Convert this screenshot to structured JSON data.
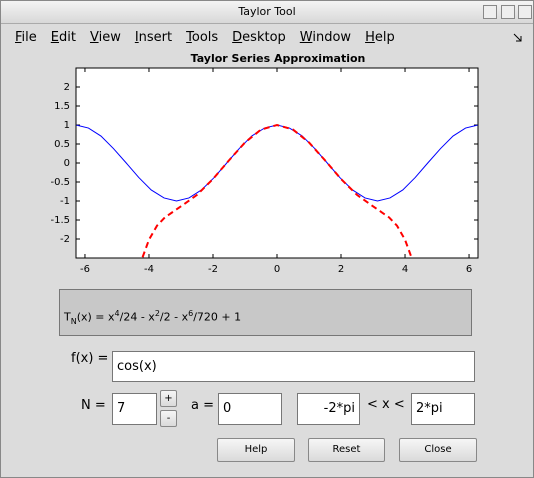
{
  "window": {
    "title": "Taylor Tool",
    "menu": [
      "File",
      "Edit",
      "View",
      "Insert",
      "Tools",
      "Desktop",
      "Window",
      "Help"
    ]
  },
  "chart_data": {
    "type": "line",
    "title": "Taylor Series Approximation",
    "xlim": [
      -6.28,
      6.28
    ],
    "ylim": [
      -2.5,
      2.5
    ],
    "xticks": [
      -6,
      -4,
      -2,
      0,
      2,
      4,
      6
    ],
    "yticks": [
      -2,
      -1.5,
      -1,
      -0.5,
      0,
      0.5,
      1,
      1.5,
      2
    ],
    "series": [
      {
        "color": "#0000ff",
        "dash": false,
        "x": [
          -6.28,
          -5.89,
          -5.5,
          -5.11,
          -4.71,
          -4.32,
          -3.93,
          -3.53,
          -3.14,
          -2.75,
          -2.36,
          -1.96,
          -1.57,
          -1.18,
          -0.79,
          -0.39,
          0,
          0.39,
          0.79,
          1.18,
          1.57,
          1.96,
          2.36,
          2.75,
          3.14,
          3.53,
          3.93,
          4.32,
          4.71,
          5.11,
          5.5,
          5.89,
          6.28
        ],
        "values": [
          1,
          0.92,
          0.71,
          0.38,
          0,
          -0.38,
          -0.71,
          -0.92,
          -1,
          -0.92,
          -0.71,
          -0.38,
          0,
          0.38,
          0.71,
          0.92,
          1,
          0.92,
          0.71,
          0.38,
          0,
          -0.38,
          -0.71,
          -0.92,
          -1,
          -0.92,
          -0.71,
          -0.38,
          0,
          0.38,
          0.71,
          0.92,
          1
        ]
      },
      {
        "color": "#ff0000",
        "dash": true,
        "x": [
          -4.2,
          -4,
          -3.75,
          -3.5,
          -3,
          -2.5,
          -2,
          -1.5,
          -1,
          -0.5,
          0,
          0.5,
          1,
          1.5,
          2,
          2.5,
          3,
          3.5,
          3.75,
          4,
          4.2
        ],
        "values": [
          -2.48,
          -2.02,
          -1.65,
          -1.43,
          -1.14,
          -0.84,
          -0.42,
          0.07,
          0.54,
          0.88,
          1,
          0.88,
          0.54,
          0.07,
          -0.42,
          -0.84,
          -1.14,
          -1.43,
          -1.65,
          -2.02,
          -2.48
        ]
      }
    ]
  },
  "formula": [
    "T",
    "N",
    "(x) = x",
    "4",
    "/24 - x",
    "2",
    "/2 - x",
    "6",
    "/720 + 1"
  ],
  "controls": {
    "fx_label": "f(x) =",
    "fx_value": "cos(x)",
    "n_label": "N =",
    "n_value": "7",
    "plus": "+",
    "minus": "-",
    "a_label": "a =",
    "a_value": "0",
    "xmin_value": "-2*pi",
    "range_label": "< x <",
    "xmax_value": "2*pi"
  },
  "buttons": [
    "Help",
    "Reset",
    "Close"
  ]
}
